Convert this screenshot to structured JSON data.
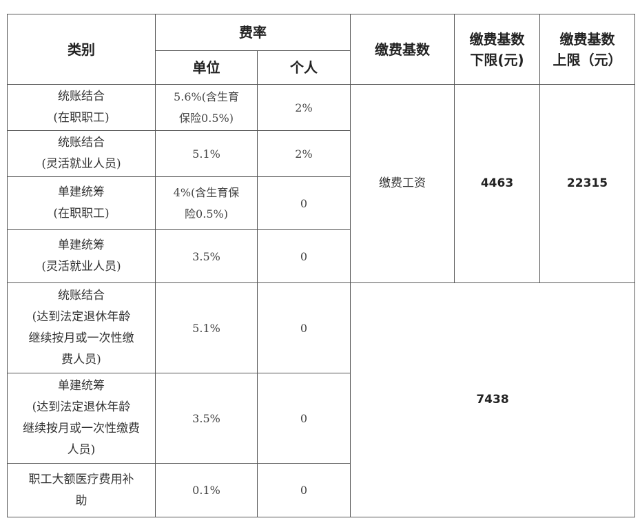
{
  "header": {
    "category": "类别",
    "rate": "费率",
    "employer": "单位",
    "individual": "个人",
    "base": "缴费基数",
    "base_min": "缴费基数\n下限(元)",
    "base_max": "缴费基数\n上限（元）"
  },
  "rows": [
    {
      "category": "统账结合\n(在职职工)",
      "employer": "5.6%(含生育\n保险0.5%)",
      "individual": "2%"
    },
    {
      "category": "统账结合\n(灵活就业人员)",
      "employer": "5.1%",
      "individual": "2%"
    },
    {
      "category": "单建统筹\n(在职职工)",
      "employer": "4%(含生育保\n险0.5%)",
      "individual": "0"
    },
    {
      "category": "单建统筹\n(灵活就业人员)",
      "employer": "3.5%",
      "individual": "0"
    },
    {
      "category": "统账结合\n(达到法定退休年龄\n继续按月或一次性缴\n费人员)",
      "employer": "5.1%",
      "individual": "0"
    },
    {
      "category": "单建统筹\n(达到法定退休年龄\n继续按月或一次性缴费\n人员)",
      "employer": "3.5%",
      "individual": "0"
    },
    {
      "category": "职工大额医疗费用补\n助",
      "employer": "0.1%",
      "individual": "0"
    }
  ],
  "group1": {
    "base": "缴费工资",
    "base_min": "4463",
    "base_max": "22315"
  },
  "group2": {
    "value": "7438"
  }
}
